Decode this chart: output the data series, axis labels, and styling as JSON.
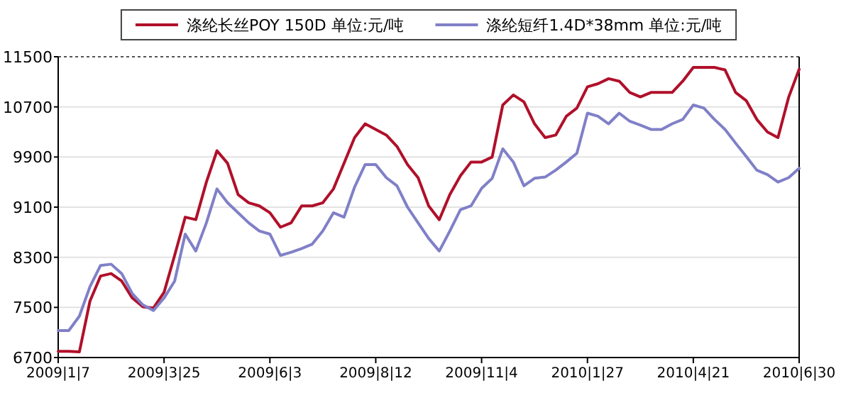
{
  "chart_data": {
    "type": "line",
    "categories": [
      "2009|1|7",
      null,
      null,
      null,
      null,
      null,
      null,
      null,
      null,
      null,
      "2009|3|25",
      null,
      null,
      null,
      null,
      null,
      null,
      null,
      null,
      null,
      "2009|6|3",
      null,
      null,
      null,
      null,
      null,
      null,
      null,
      null,
      null,
      "2009|8|12",
      null,
      null,
      null,
      null,
      null,
      null,
      null,
      null,
      null,
      "2009|11|4",
      null,
      null,
      null,
      null,
      null,
      null,
      null,
      null,
      null,
      "2010|1|27",
      null,
      null,
      null,
      null,
      null,
      null,
      null,
      null,
      null,
      "2010|4|21",
      null,
      null,
      null,
      null,
      null,
      null,
      null,
      null,
      null,
      "2010|6|30"
    ],
    "series": [
      {
        "name": "涤纶长丝POY 150D 单位:元/吨",
        "color": "#b0102a",
        "values": [
          6800,
          6800,
          6790,
          7600,
          8000,
          8040,
          7920,
          7650,
          7510,
          7490,
          7740,
          8330,
          8940,
          8900,
          9500,
          10000,
          9800,
          9300,
          9170,
          9120,
          9010,
          8780,
          8850,
          9120,
          9120,
          9170,
          9390,
          9800,
          10210,
          10430,
          10340,
          10250,
          10070,
          9780,
          9570,
          9120,
          8900,
          9300,
          9600,
          9820,
          9820,
          9900,
          10730,
          10890,
          10780,
          10430,
          10210,
          10250,
          10550,
          10680,
          11020,
          11070,
          11150,
          11110,
          10930,
          10860,
          10930,
          10930,
          10930,
          11110,
          11330,
          11330,
          11330,
          11290,
          10930,
          10800,
          10500,
          10300,
          10210,
          10850,
          11300
        ]
      },
      {
        "name": "涤纶短纤1.4D*38mm 单位:元/吨",
        "color": "#8080c8",
        "values": [
          7130,
          7130,
          7360,
          7830,
          8170,
          8190,
          8040,
          7720,
          7540,
          7450,
          7650,
          7920,
          8670,
          8400,
          8850,
          9390,
          9170,
          9010,
          8850,
          8720,
          8670,
          8330,
          8380,
          8440,
          8510,
          8720,
          9010,
          8940,
          9420,
          9780,
          9780,
          9570,
          9440,
          9100,
          8850,
          8600,
          8400,
          8720,
          9060,
          9120,
          9400,
          9560,
          10030,
          9820,
          9440,
          9560,
          9580,
          9690,
          9820,
          9960,
          10600,
          10550,
          10430,
          10600,
          10470,
          10410,
          10340,
          10340,
          10430,
          10500,
          10730,
          10680,
          10500,
          10340,
          10120,
          9910,
          9690,
          9620,
          9500,
          9570,
          9720
        ]
      }
    ],
    "ylim": [
      6700,
      11500
    ],
    "yticks": [
      6700,
      7500,
      8300,
      9100,
      9900,
      10700,
      11500
    ],
    "grid": "y",
    "legend": "top"
  }
}
